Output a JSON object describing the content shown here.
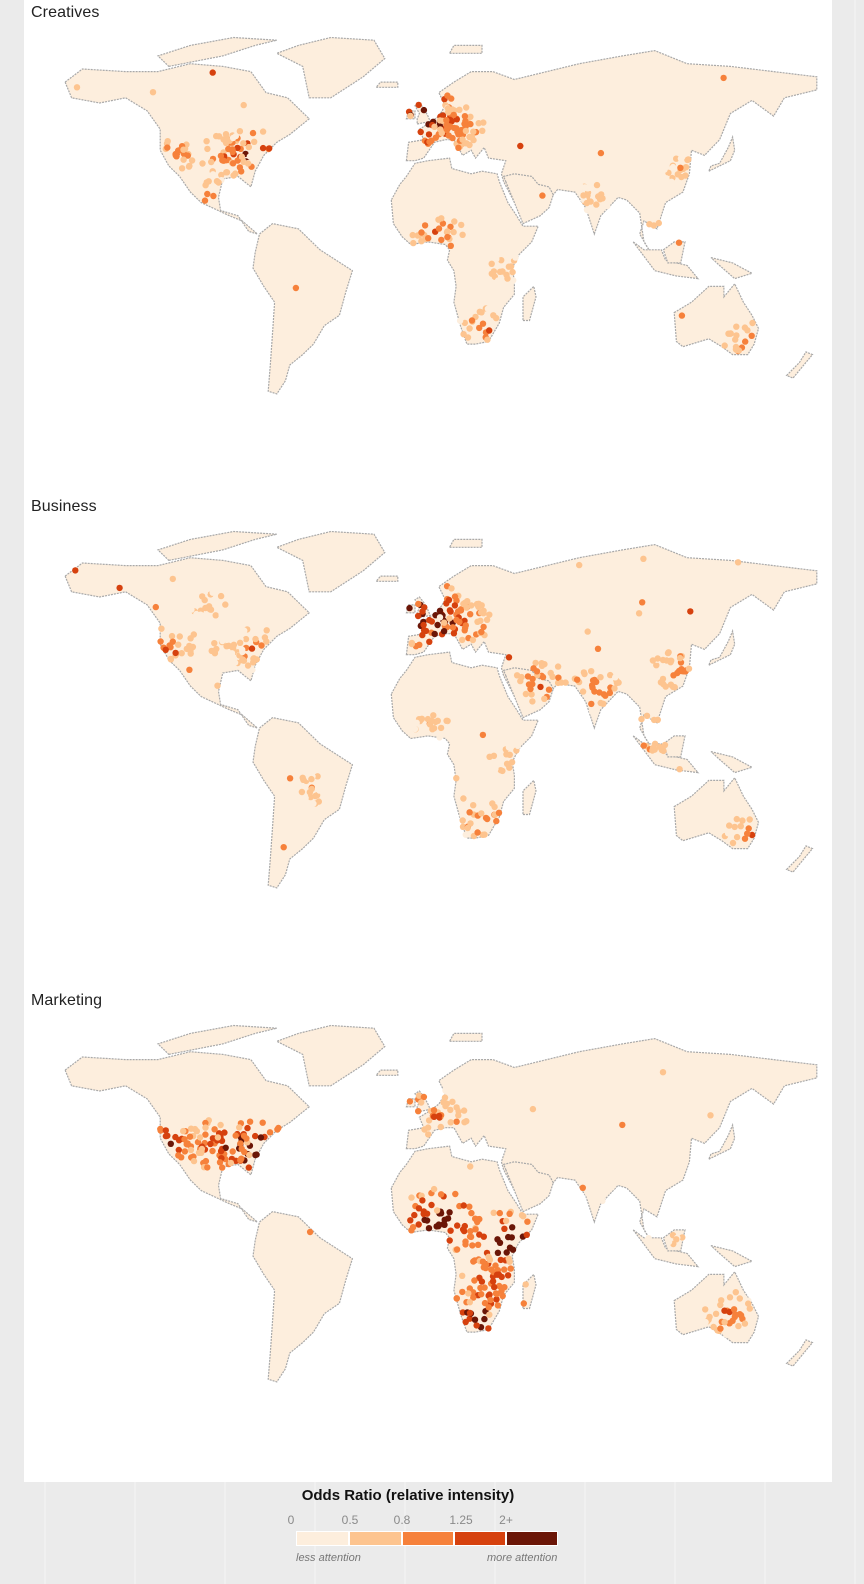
{
  "panels": [
    {
      "title": "Creatives",
      "hotspots": [
        {
          "region": "north-america-east",
          "lon": -82,
          "lat": 38,
          "level": 4
        },
        {
          "region": "north-america-central",
          "lon": -95,
          "lat": 38,
          "level": 3
        },
        {
          "region": "north-america-west",
          "lon": -120,
          "lat": 38,
          "level": 3
        },
        {
          "region": "mexico",
          "lon": -100,
          "lat": 21,
          "level": 3
        },
        {
          "region": "uk",
          "lon": -2,
          "lat": 53,
          "level": 5
        },
        {
          "region": "western-europe",
          "lon": 5,
          "lat": 49,
          "level": 4
        },
        {
          "region": "central-europe",
          "lon": 15,
          "lat": 50,
          "level": 3
        },
        {
          "region": "west-africa",
          "lon": 4,
          "lat": 8,
          "level": 3
        },
        {
          "region": "south-africa",
          "lon": 27,
          "lat": -28,
          "level": 3
        },
        {
          "region": "east-africa",
          "lon": 34,
          "lat": -5,
          "level": 2
        },
        {
          "region": "india",
          "lon": 78,
          "lat": 22,
          "level": 2
        },
        {
          "region": "south-east-asia",
          "lon": 105,
          "lat": 10,
          "level": 2
        },
        {
          "region": "east-asia",
          "lon": 118,
          "lat": 32,
          "level": 2
        },
        {
          "region": "australia-east",
          "lon": 150,
          "lat": -33,
          "level": 3
        },
        {
          "region": "south-america",
          "lon": -60,
          "lat": -10,
          "level": 1
        }
      ]
    },
    {
      "title": "Business",
      "hotspots": [
        {
          "region": "north-america-east",
          "lon": -80,
          "lat": 38,
          "level": 3
        },
        {
          "region": "north-america-central",
          "lon": -95,
          "lat": 38,
          "level": 2
        },
        {
          "region": "north-america-west",
          "lon": -120,
          "lat": 40,
          "level": 3
        },
        {
          "region": "canada",
          "lon": -100,
          "lat": 55,
          "level": 2
        },
        {
          "region": "uk",
          "lon": -2,
          "lat": 53,
          "level": 5
        },
        {
          "region": "western-europe",
          "lon": 5,
          "lat": 48,
          "level": 5
        },
        {
          "region": "central-europe",
          "lon": 18,
          "lat": 48,
          "level": 3
        },
        {
          "region": "middle-east",
          "lon": 52,
          "lat": 25,
          "level": 3
        },
        {
          "region": "west-africa",
          "lon": 2,
          "lat": 9,
          "level": 2
        },
        {
          "region": "east-africa",
          "lon": 35,
          "lat": -3,
          "level": 2
        },
        {
          "region": "south-africa",
          "lon": 27,
          "lat": -28,
          "level": 3
        },
        {
          "region": "india",
          "lon": 77,
          "lat": 22,
          "level": 3
        },
        {
          "region": "east-asia",
          "lon": 115,
          "lat": 30,
          "level": 3
        },
        {
          "region": "south-east-asia",
          "lon": 103,
          "lat": 5,
          "level": 3
        },
        {
          "region": "south-america",
          "lon": -55,
          "lat": -15,
          "level": 2
        },
        {
          "region": "australia-east",
          "lon": 150,
          "lat": -33,
          "level": 3
        }
      ]
    },
    {
      "title": "Marketing",
      "hotspots": [
        {
          "region": "north-america-east",
          "lon": -82,
          "lat": 36,
          "level": 5
        },
        {
          "region": "north-america-central",
          "lon": -97,
          "lat": 37,
          "level": 4
        },
        {
          "region": "north-america-west",
          "lon": -120,
          "lat": 37,
          "level": 4
        },
        {
          "region": "uk",
          "lon": -2,
          "lat": 53,
          "level": 3
        },
        {
          "region": "western-europe",
          "lon": 5,
          "lat": 48,
          "level": 3
        },
        {
          "region": "west-africa",
          "lon": 5,
          "lat": 8,
          "level": 5
        },
        {
          "region": "east-africa",
          "lon": 36,
          "lat": 0,
          "level": 5
        },
        {
          "region": "south-africa",
          "lon": 27,
          "lat": -27,
          "level": 5
        },
        {
          "region": "zambia-zimbabwe",
          "lon": 30,
          "lat": -15,
          "level": 4
        },
        {
          "region": "india",
          "lon": 78,
          "lat": 20,
          "level": 1
        },
        {
          "region": "south-east-asia",
          "lon": 110,
          "lat": 5,
          "level": 2
        },
        {
          "region": "australia",
          "lon": 140,
          "lat": -27,
          "level": 3
        },
        {
          "region": "south-america",
          "lon": -60,
          "lat": -12,
          "level": 1
        }
      ]
    }
  ],
  "colors": {
    "land": "#fdeedd",
    "coast": "#a9a9a9",
    "scale": [
      "#fdeedd",
      "#fdc48f",
      "#f6813b",
      "#d6410e",
      "#6b1607"
    ]
  },
  "legend": {
    "title": "Odds Ratio (relative intensity)",
    "ticks": [
      "0",
      "0.5",
      "0.8",
      "1.25",
      "2+"
    ],
    "less_label": "less attention",
    "more_label": "more attention"
  }
}
